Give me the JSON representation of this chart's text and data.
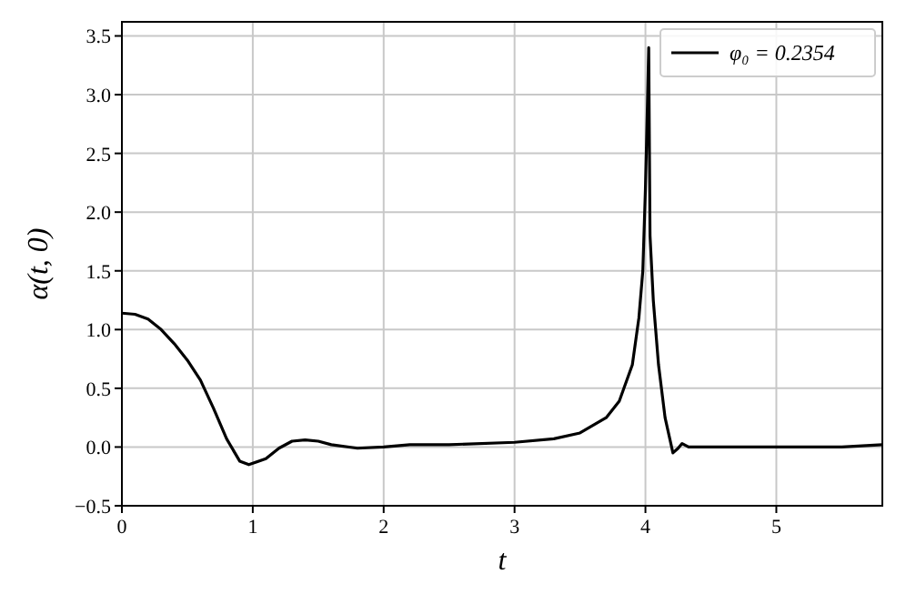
{
  "chart_data": {
    "type": "line",
    "xlabel": "t",
    "ylabel": "α(t, 0)",
    "x": [
      0,
      0.1,
      0.2,
      0.3,
      0.4,
      0.5,
      0.6,
      0.7,
      0.8,
      0.9,
      0.97,
      1.1,
      1.2,
      1.3,
      1.4,
      1.5,
      1.6,
      1.8,
      2.0,
      2.2,
      2.5,
      3.0,
      3.3,
      3.5,
      3.7,
      3.8,
      3.9,
      3.95,
      3.98,
      4.0,
      4.015,
      4.025,
      4.035,
      4.06,
      4.1,
      4.15,
      4.21,
      4.25,
      4.28,
      4.33,
      5.0,
      5.5,
      5.81
    ],
    "series": [
      {
        "name": "φ₀ = 0.2354",
        "color": "#000000",
        "values": [
          1.14,
          1.13,
          1.09,
          1.0,
          0.88,
          0.74,
          0.57,
          0.33,
          0.07,
          -0.12,
          -0.15,
          -0.1,
          -0.01,
          0.05,
          0.06,
          0.05,
          0.02,
          -0.01,
          0.0,
          0.02,
          0.02,
          0.04,
          0.07,
          0.12,
          0.25,
          0.39,
          0.7,
          1.1,
          1.5,
          2.2,
          2.9,
          3.4,
          1.8,
          1.25,
          0.7,
          0.25,
          -0.05,
          -0.01,
          0.03,
          0.0,
          0.0,
          0.0,
          0.02
        ]
      }
    ],
    "xlim": [
      0,
      5.81
    ],
    "xticks": [
      0,
      1,
      2,
      3,
      4,
      5
    ],
    "ylim": [
      -0.5,
      3.62
    ],
    "yticks": [
      {
        "value": -0.5,
        "label": "−0.5"
      },
      {
        "value": 0,
        "label": "0.0"
      },
      {
        "value": 0.5,
        "label": "0.5"
      },
      {
        "value": 1,
        "label": "1.0"
      },
      {
        "value": 1.5,
        "label": "1.5"
      },
      {
        "value": 2,
        "label": "2.0"
      },
      {
        "value": 2.5,
        "label": "2.5"
      },
      {
        "value": 3,
        "label": "3.0"
      },
      {
        "value": 3.5,
        "label": "3.5"
      }
    ],
    "grid": true,
    "legend": "top right",
    "line_style": "solid",
    "marker": "none"
  }
}
